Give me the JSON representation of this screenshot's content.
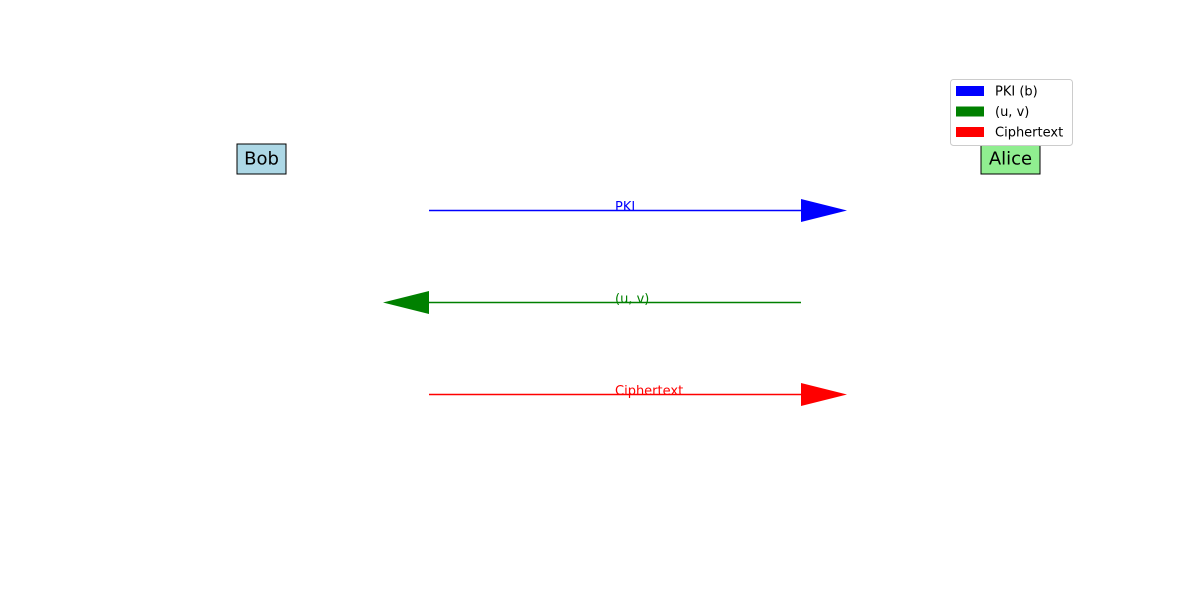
{
  "parties": {
    "bob": {
      "label": "Bob",
      "fill": "#add8e6"
    },
    "alice": {
      "label": "Alice",
      "fill": "#90ee90"
    }
  },
  "messages": [
    {
      "label": "PKI",
      "color": "#0000ff",
      "direction": "right"
    },
    {
      "label": "(u, v)",
      "color": "#008000",
      "direction": "left"
    },
    {
      "label": "Ciphertext",
      "color": "#ff0000",
      "direction": "right"
    }
  ],
  "legend": {
    "items": [
      {
        "label": "PKI (b)",
        "color": "#0000ff"
      },
      {
        "label": "(u, v)",
        "color": "#008000"
      },
      {
        "label": "Ciphertext",
        "color": "#ff0000"
      }
    ]
  }
}
